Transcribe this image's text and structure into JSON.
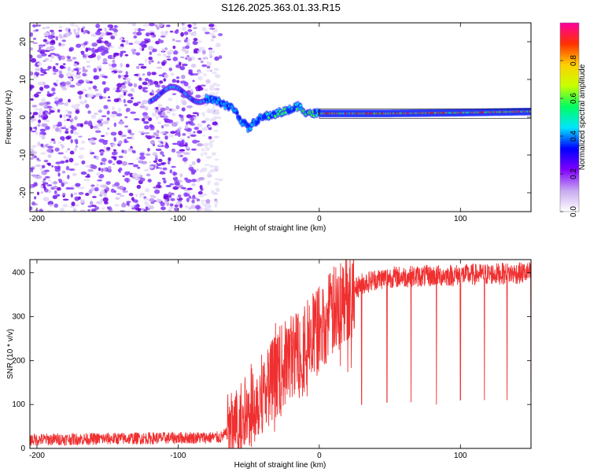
{
  "title": "S126.2025.363.01.33.R15",
  "chart_data": [
    {
      "type": "heatmap",
      "name": "spectrogram",
      "xlabel": "Height of straight line (km)",
      "ylabel": "Frequency (Hz)",
      "xlim": [
        -205,
        150
      ],
      "ylim": [
        -25,
        25
      ],
      "xticks": [
        -200,
        -100,
        0,
        100
      ],
      "xtick_labels": [
        "-200",
        "-100",
        "0",
        "100"
      ],
      "yticks": [
        -20,
        -10,
        0,
        10,
        20
      ],
      "ytick_labels": [
        "-20",
        "-10",
        "0",
        "10",
        "20"
      ],
      "colorbar": {
        "label": "Normalized spectral amplitude",
        "range": [
          0,
          1
        ],
        "ticks": [
          0.0,
          0.2,
          0.4,
          0.6,
          0.8
        ],
        "tick_labels": [
          "0.0",
          "0.2",
          "0.4",
          "0.6",
          "0.8"
        ],
        "colors": [
          "#ffffff",
          "#c8a8f0",
          "#8000ff",
          "#0000ff",
          "#00e5ff",
          "#00ff60",
          "#c8ff00",
          "#ffd000",
          "#ff3000",
          "#ff00a0"
        ]
      },
      "signal_track": {
        "x": [
          -80,
          -70,
          -60,
          -55,
          -50,
          -45,
          -40,
          -35,
          -30,
          -25,
          -20,
          -15,
          -10,
          -5,
          0,
          50,
          100,
          150
        ],
        "freq": [
          5,
          4,
          2,
          -1,
          -3,
          -1,
          0,
          0.5,
          1,
          1.5,
          2,
          3,
          1.5,
          1,
          1,
          1,
          1.2,
          1.5
        ]
      },
      "noise_region": [
        -205,
        -75
      ]
    },
    {
      "type": "line",
      "name": "snr",
      "xlabel": "Height of straight line (km)",
      "ylabel": "SNR (10 * v/v)",
      "xlim": [
        -205,
        150
      ],
      "ylim": [
        0,
        430
      ],
      "xticks": [
        -200,
        -100,
        0,
        100
      ],
      "xtick_labels": [
        "-200",
        "-100",
        "0",
        "100"
      ],
      "yticks": [
        0,
        100,
        200,
        300,
        400
      ],
      "ytick_labels": [
        "0",
        "100",
        "200",
        "300",
        "400"
      ],
      "color": "#f03030",
      "profile": {
        "x": [
          -205,
          -70,
          -60,
          -50,
          -40,
          -30,
          -20,
          -10,
          0,
          10,
          20,
          30,
          40,
          50,
          150
        ],
        "y": [
          20,
          25,
          45,
          80,
          130,
          170,
          210,
          240,
          270,
          310,
          350,
          375,
          385,
          390,
          400
        ]
      },
      "dips": [
        {
          "x": 30,
          "y": 100
        },
        {
          "x": 48,
          "y": 105
        },
        {
          "x": 65,
          "y": 105
        },
        {
          "x": 83,
          "y": 100
        },
        {
          "x": 100,
          "y": 110
        },
        {
          "x": 117,
          "y": 110
        },
        {
          "x": 133,
          "y": 110
        },
        {
          "x": 150,
          "y": 130
        }
      ]
    }
  ]
}
